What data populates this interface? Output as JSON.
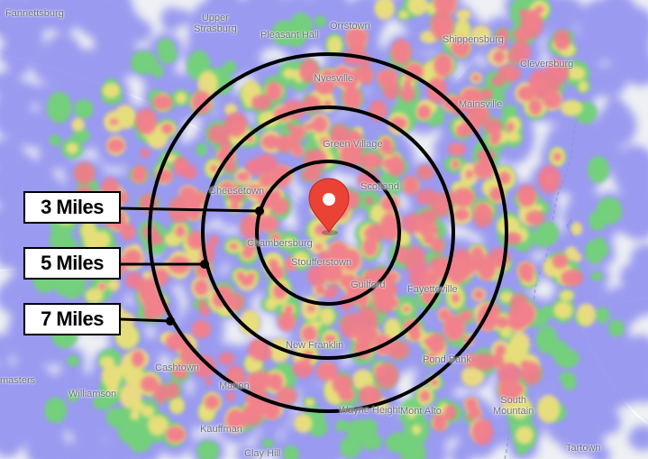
{
  "map": {
    "colors": {
      "background": "#eef0f3",
      "heat_low": "#8f8ff0",
      "heat_mid": "#6fd66f",
      "heat_high": "#f0e07a",
      "heat_peak": "#f27a8c",
      "ring": "#000000",
      "pin": "#ea4335"
    },
    "pin": {
      "icon": "location-pin-icon"
    }
  },
  "rings": [
    {
      "label": "3 Miles"
    },
    {
      "label": "5 Miles"
    },
    {
      "label": "7 Miles"
    }
  ],
  "places": {
    "fannettsburg": "Fannettsburg",
    "upper_strasburg_1": "Upper",
    "upper_strasburg_2": "Strasburg",
    "pleasant_hall": "Pleasant Hall",
    "orrstown": "Orrstown",
    "shippensburg": "Shippensburg",
    "cleversburg": "Cleversburg",
    "nyesville": "Nyesville",
    "mainsville": "Mainsville",
    "green_village": "Green Village",
    "cheesetown": "Cheesetown",
    "scotland": "Scotland",
    "chambersburg": "Chambersburg",
    "stoufferstown": "Stoufferstown",
    "guilford": "Guilford",
    "fayetteville": "Fayetteville",
    "new_franklin": "New Franklin",
    "pond_bank": "Pond Bank",
    "cashtown": "Cashtown",
    "masters": "masters",
    "williamson": "Williamson",
    "marion": "Marion",
    "wayne_heights": "Wayne Heights",
    "mont_alto": "Mont Alto",
    "south_mountain_1": "South",
    "south_mountain_2": "Mountain",
    "kauffman": "Kauffman",
    "clay_hill": "Clay Hill",
    "tartown": "Tartown"
  }
}
